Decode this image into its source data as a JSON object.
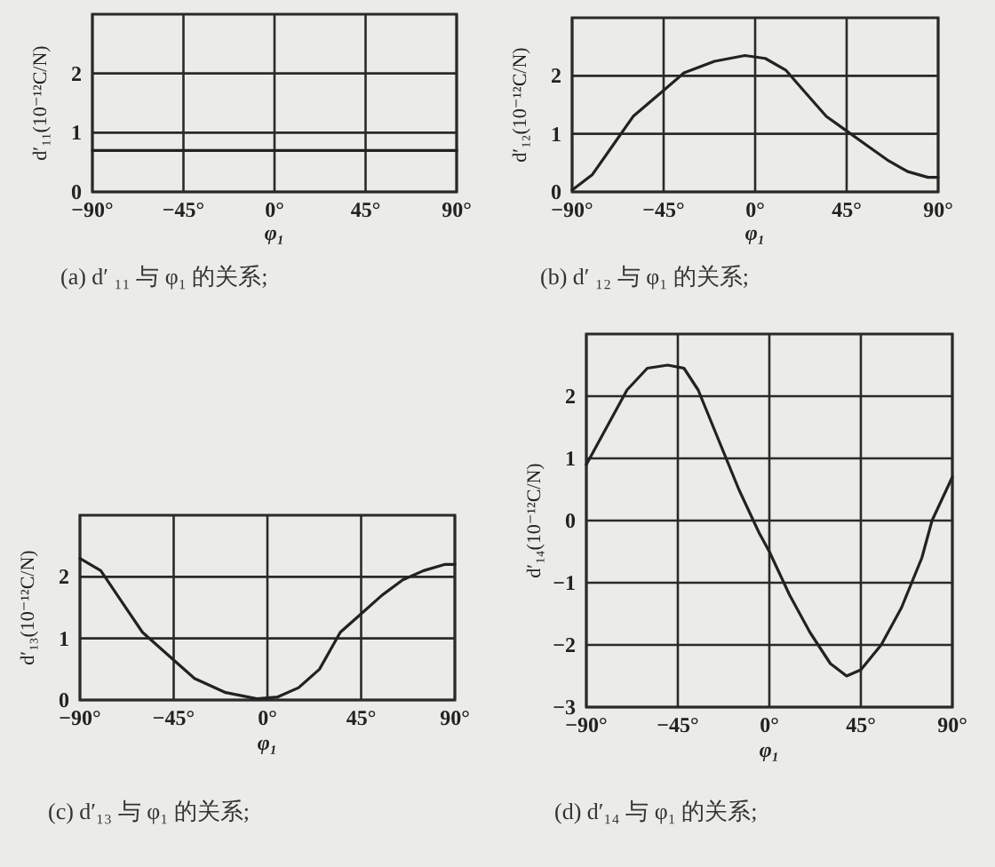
{
  "chart_data": [
    {
      "type": "line",
      "title": "(a) d′ ₁₁ 与 φ₁ 的关系;",
      "xlabel": "φ₁",
      "ylabel": "d′₁₁(10⁻¹²C/N)",
      "x": [
        -90,
        90
      ],
      "series": [
        {
          "color": "#222222",
          "values": [
            0.7,
            0.7
          ]
        }
      ],
      "xlim": [
        -90,
        90
      ],
      "ylim": [
        0,
        3
      ],
      "xticks": [
        {
          "value": -90,
          "label": "−90°"
        },
        {
          "value": -45,
          "label": "−45°"
        },
        {
          "value": 0,
          "label": "0°"
        },
        {
          "value": 45,
          "label": "45°"
        },
        {
          "value": 90,
          "label": "90°"
        }
      ],
      "yticks": [
        0,
        1,
        2
      ],
      "grid": true
    },
    {
      "type": "line",
      "title": "(b) d′ ₁₂ 与 φ₁ 的关系;",
      "xlabel": "φ₁",
      "ylabel": "d′₁₂(10⁻¹²C/N)",
      "x": [
        -90,
        -80,
        -70,
        -60,
        -45,
        -35,
        -20,
        -5,
        5,
        15,
        25,
        35,
        45,
        55,
        65,
        75,
        85,
        90
      ],
      "series": [
        {
          "color": "#222222",
          "values": [
            0.03,
            0.3,
            0.8,
            1.3,
            1.75,
            2.05,
            2.25,
            2.35,
            2.3,
            2.1,
            1.7,
            1.3,
            1.05,
            0.8,
            0.55,
            0.35,
            0.25,
            0.25
          ]
        }
      ],
      "xlim": [
        -90,
        90
      ],
      "ylim": [
        0,
        3
      ],
      "xticks": [
        {
          "value": -90,
          "label": "−90°"
        },
        {
          "value": -45,
          "label": "−45°"
        },
        {
          "value": 0,
          "label": "0°"
        },
        {
          "value": 45,
          "label": "45°"
        },
        {
          "value": 90,
          "label": "90°"
        }
      ],
      "yticks": [
        0,
        1,
        2
      ],
      "grid": true
    },
    {
      "type": "line",
      "title": "(c) d′₁₃ 与 φ₁ 的关系;",
      "xlabel": "φ₁",
      "ylabel": "d′₁₃(10⁻¹²C/N)",
      "x": [
        -90,
        -80,
        -70,
        -60,
        -45,
        -35,
        -20,
        -5,
        5,
        15,
        25,
        35,
        45,
        55,
        65,
        75,
        85,
        90
      ],
      "series": [
        {
          "color": "#222222",
          "values": [
            2.3,
            2.1,
            1.6,
            1.1,
            0.65,
            0.35,
            0.12,
            0.02,
            0.05,
            0.2,
            0.5,
            1.1,
            1.4,
            1.7,
            1.95,
            2.1,
            2.2,
            2.2
          ]
        }
      ],
      "xlim": [
        -90,
        90
      ],
      "ylim": [
        0,
        3
      ],
      "xticks": [
        {
          "value": -90,
          "label": "−90°"
        },
        {
          "value": -45,
          "label": "−45°"
        },
        {
          "value": 0,
          "label": "0°"
        },
        {
          "value": 45,
          "label": "45°"
        },
        {
          "value": 90,
          "label": "90°"
        }
      ],
      "yticks": [
        0,
        1,
        2
      ],
      "grid": true
    },
    {
      "type": "line",
      "title": "(d) d′₁₄ 与 φ₁ 的关系;",
      "xlabel": "φ₁",
      "ylabel": "d′₁₄(10⁻¹²C/N)",
      "x": [
        -90,
        -80,
        -70,
        -60,
        -50,
        -42,
        -35,
        -25,
        -15,
        -5,
        0,
        10,
        20,
        30,
        38,
        45,
        55,
        65,
        75,
        80,
        90
      ],
      "series": [
        {
          "color": "#222222",
          "values": [
            0.9,
            1.5,
            2.1,
            2.45,
            2.5,
            2.45,
            2.1,
            1.3,
            0.5,
            -0.2,
            -0.5,
            -1.2,
            -1.8,
            -2.3,
            -2.5,
            -2.4,
            -2.0,
            -1.4,
            -0.6,
            0,
            0.7
          ]
        }
      ],
      "xlim": [
        -90,
        90
      ],
      "ylim": [
        -3,
        3
      ],
      "xticks": [
        {
          "value": -90,
          "label": "−90°"
        },
        {
          "value": -45,
          "label": "−45°"
        },
        {
          "value": 0,
          "label": "0°"
        },
        {
          "value": 45,
          "label": "45°"
        },
        {
          "value": 90,
          "label": "90°"
        }
      ],
      "yticks": [
        {
          "value": -3,
          "label": "−3"
        },
        {
          "value": -2,
          "label": "−2"
        },
        {
          "value": -1,
          "label": "−1"
        },
        0,
        1,
        2
      ],
      "grid": true
    }
  ]
}
